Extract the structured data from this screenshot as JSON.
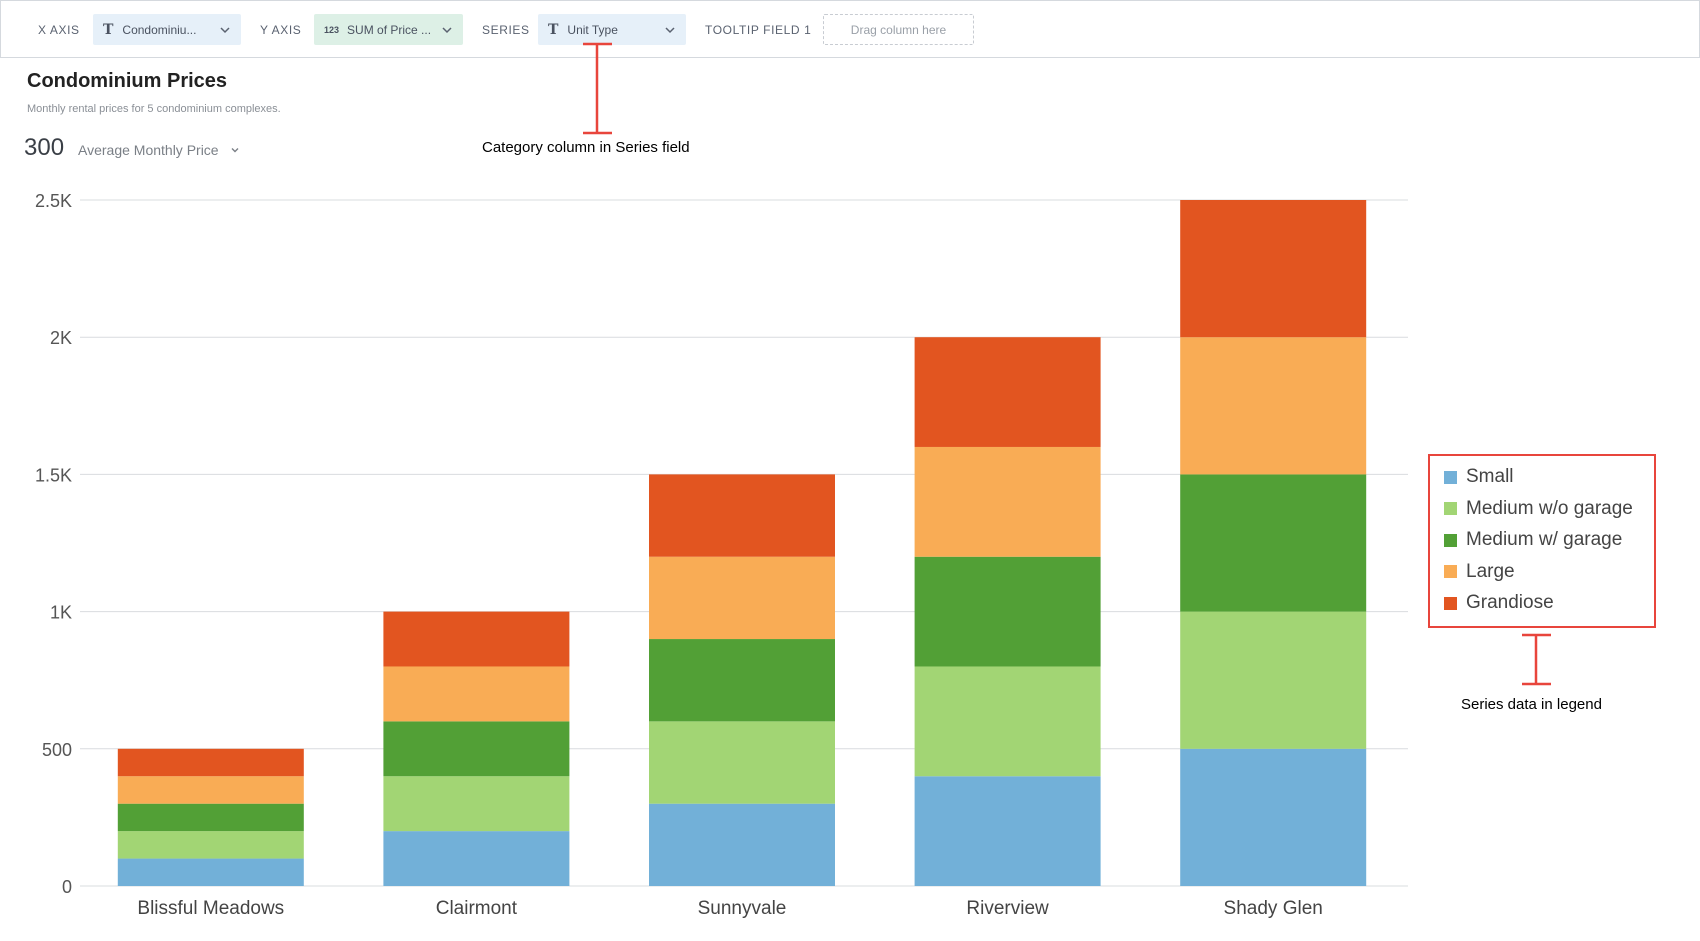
{
  "toolbar": {
    "x_axis_label": "X AXIS",
    "x_axis_field": "Condominiu...",
    "y_axis_label": "Y AXIS",
    "y_axis_type": "123",
    "y_axis_field": "SUM of Price ...",
    "series_label": "SERIES",
    "series_field": "Unit Type",
    "tooltip_label": "TOOLTIP FIELD 1",
    "tooltip_placeholder": "Drag column here"
  },
  "header": {
    "title": "Condominium Prices",
    "subtitle": "Monthly rental prices for 5 condominium complexes.",
    "big_number": "300",
    "aggregate_label": "Average Monthly Price"
  },
  "annotations": {
    "series_field_note": "Category column in Series field",
    "legend_note": "Series data in legend"
  },
  "chart_data": {
    "type": "bar",
    "stacked": true,
    "title": "Condominium Prices",
    "subtitle": "Monthly rental prices for 5 condominium complexes.",
    "categories": [
      "Blissful Meadows",
      "Clairmont",
      "Sunnyvale",
      "Riverview",
      "Shady Glen"
    ],
    "ylim": [
      0,
      2500
    ],
    "yticks": [
      0,
      500,
      1000,
      1500,
      2000,
      2500
    ],
    "ytick_labels": [
      "0",
      "500",
      "1K",
      "1.5K",
      "2K",
      "2.5K"
    ],
    "grid": true,
    "legend_position": "right",
    "series": [
      {
        "name": "Small",
        "color": "#72b0d8",
        "values": [
          100,
          200,
          300,
          400,
          500
        ]
      },
      {
        "name": "Medium w/o garage",
        "color": "#a2d574",
        "values": [
          100,
          200,
          300,
          400,
          500
        ]
      },
      {
        "name": "Medium w/ garage",
        "color": "#52a036",
        "values": [
          100,
          200,
          300,
          400,
          500
        ]
      },
      {
        "name": "Large",
        "color": "#f9ac55",
        "values": [
          100,
          200,
          300,
          400,
          500
        ]
      },
      {
        "name": "Grandiose",
        "color": "#e25520",
        "values": [
          100,
          200,
          300,
          400,
          500
        ]
      }
    ]
  },
  "colors": {
    "annotation_red": "#e8453c",
    "grid": "#d9dcdf"
  }
}
